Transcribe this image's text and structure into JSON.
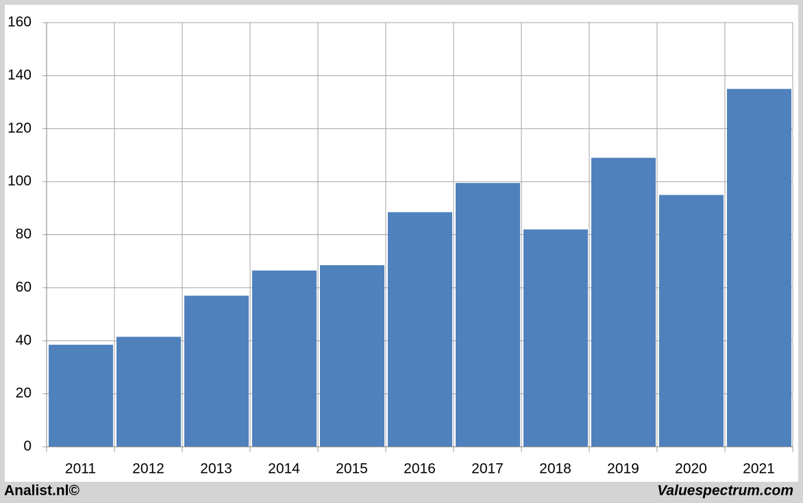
{
  "chart_data": {
    "type": "bar",
    "categories": [
      "2011",
      "2012",
      "2013",
      "2014",
      "2015",
      "2016",
      "2017",
      "2018",
      "2019",
      "2020",
      "2021"
    ],
    "values": [
      38.5,
      41.5,
      57,
      66.5,
      68.5,
      88.5,
      99.5,
      82,
      109,
      95,
      135
    ],
    "color": "#4f81bd",
    "ylim": [
      0,
      160
    ],
    "yticks": [
      0,
      20,
      40,
      60,
      80,
      100,
      120,
      140,
      160
    ],
    "grid": true
  },
  "footer": {
    "left": "Analist.nl©",
    "right": "Valuespectrum.com"
  }
}
